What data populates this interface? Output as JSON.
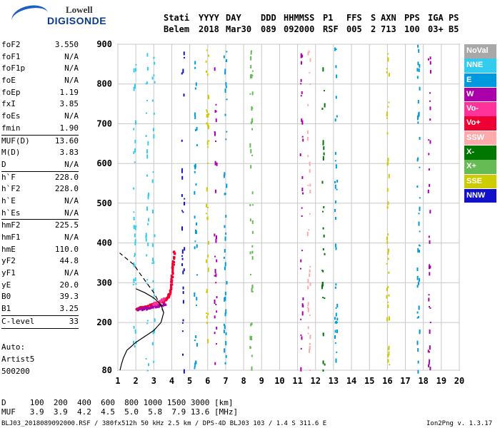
{
  "logo": {
    "line1": "Lowell",
    "line2": "DIGISONDE"
  },
  "header": {
    "labels": [
      "Stati",
      "YYYY",
      "DAY",
      "DDD",
      "HHMMSS",
      "P1",
      "FFS",
      "S",
      "AXN",
      "PPS",
      "IGA",
      "PS"
    ],
    "values": [
      "Belem",
      "2018",
      "Mar30",
      "089",
      "092000",
      "RSF",
      "005",
      "2",
      "713",
      "100",
      "03+",
      "B5"
    ]
  },
  "params": [
    {
      "label": "foF2",
      "value": "3.550"
    },
    {
      "label": "foF1",
      "value": "N/A"
    },
    {
      "label": "foF1p",
      "value": "N/A"
    },
    {
      "label": "foE",
      "value": "N/A"
    },
    {
      "label": "foEp",
      "value": "1.19"
    },
    {
      "label": "fxI",
      "value": "3.85"
    },
    {
      "label": "foEs",
      "value": "N/A"
    },
    {
      "label": "fmin",
      "value": "1.90"
    },
    {
      "label": "MUF(D)",
      "value": "13.60",
      "sep": true
    },
    {
      "label": "M(D)",
      "value": "3.83"
    },
    {
      "label": "D",
      "value": "N/A"
    },
    {
      "label": "h`F",
      "value": "228.0",
      "sep": true
    },
    {
      "label": "h`F2",
      "value": "228.0"
    },
    {
      "label": "h`E",
      "value": "N/A"
    },
    {
      "label": "h`Es",
      "value": "N/A"
    },
    {
      "label": "hmF2",
      "value": "225.5",
      "sep": true
    },
    {
      "label": "hmF1",
      "value": "N/A"
    },
    {
      "label": "hmE",
      "value": "110.0"
    },
    {
      "label": "yF2",
      "value": "44.8"
    },
    {
      "label": "yF1",
      "value": "N/A"
    },
    {
      "label": "yE",
      "value": "20.0"
    },
    {
      "label": "B0",
      "value": "39.3"
    },
    {
      "label": "B1",
      "value": "3.25"
    },
    {
      "label": "C-level",
      "value": "33",
      "sep": true
    }
  ],
  "auto": {
    "line1": "Auto:",
    "line2": "Artist5",
    "line3": "500200"
  },
  "legend": [
    {
      "label": "NoVal",
      "color": "#a8a8a8"
    },
    {
      "label": "NNE",
      "color": "#33ccee"
    },
    {
      "label": "E",
      "color": "#0099dd"
    },
    {
      "label": "W",
      "color": "#aa00aa"
    },
    {
      "label": "Vo-",
      "color": "#ff3399"
    },
    {
      "label": "Vo+",
      "color": "#ee0033"
    },
    {
      "label": "SSW",
      "color": "#ffaaaa"
    },
    {
      "label": "X-",
      "color": "#007700"
    },
    {
      "label": "X+",
      "color": "#66bb55"
    },
    {
      "label": "SSE",
      "color": "#cccc00"
    },
    {
      "label": "NNW",
      "color": "#1111cc"
    }
  ],
  "bottom": {
    "d_row": "D     100  200  400  600  800 1000 1500 3000 [km]",
    "muf_row": "MUF   3.9  3.9  4.2  4.5  5.0  5.8  7.9 13.6 [MHz]"
  },
  "footer": {
    "left": "BLJ03_2018089092000.RSF / 380fx512h 50 kHz 2.5 km / DPS-4D BLJ03 103 / 1.4 S 311.6 E",
    "right": "Ion2Png v. 1.3.17"
  },
  "chart_data": {
    "type": "scatter",
    "x_range": [
      1,
      20
    ],
    "y_range": [
      80,
      900
    ],
    "x_ticks": [
      1,
      2,
      3,
      4,
      5,
      6,
      7,
      8,
      9,
      10,
      11,
      12,
      13,
      14,
      15,
      16,
      17,
      18,
      19,
      20
    ],
    "y_ticks": [
      80,
      200,
      300,
      400,
      500,
      600,
      700,
      800,
      900
    ],
    "grid": true,
    "legend_position": "right",
    "echo_traces": [
      {
        "color": "#ee0033",
        "freq": [
          2.05,
          2.3,
          2.6,
          2.9,
          3.2,
          3.5,
          3.7,
          3.85,
          3.95,
          4.0,
          4.05,
          4.1,
          4.15
        ],
        "height": [
          233,
          236,
          240,
          244,
          248,
          252,
          258,
          268,
          285,
          305,
          330,
          355,
          380
        ]
      },
      {
        "color": "#aa00aa",
        "freq": [
          2.1,
          2.5,
          2.9,
          3.3,
          3.7
        ],
        "height": [
          232,
          235,
          238,
          242,
          247
        ]
      },
      {
        "color": "#ff3399",
        "freq": [
          3.0,
          3.2,
          3.4,
          3.6
        ],
        "height": [
          246,
          250,
          254,
          260
        ]
      }
    ],
    "profile_solid": {
      "density": [
        1.12,
        1.2,
        1.3,
        1.5,
        2.0,
        2.5,
        3.0,
        3.4,
        3.55,
        3.4,
        3.0,
        2.5,
        2.0
      ],
      "height": [
        80,
        95,
        110,
        130,
        150,
        165,
        180,
        200,
        225,
        245,
        262,
        275,
        285
      ]
    },
    "profile_dashed": {
      "density": [
        3.55,
        3.3,
        3.0,
        2.6,
        2.2,
        1.9,
        1.5,
        1.1
      ],
      "height": [
        225,
        250,
        275,
        300,
        325,
        345,
        360,
        375
      ]
    },
    "vertical_stripes": [
      {
        "freq": 1.9,
        "color": "#33ccee"
      },
      {
        "freq": 2.6,
        "color": "#33ccee"
      },
      {
        "freq": 2.95,
        "color": "#33ccee"
      },
      {
        "freq": 4.6,
        "color": "#1111cc"
      },
      {
        "freq": 5.3,
        "color": "#0099dd"
      },
      {
        "freq": 5.95,
        "color": "#cccc00"
      },
      {
        "freq": 6.4,
        "color": "#aa00aa"
      },
      {
        "freq": 6.95,
        "color": "#0099dd"
      },
      {
        "freq": 8.4,
        "color": "#66bb55"
      },
      {
        "freq": 11.2,
        "color": "#aa00aa"
      },
      {
        "freq": 11.6,
        "color": "#ffaaaa"
      },
      {
        "freq": 12.4,
        "color": "#007700"
      },
      {
        "freq": 13.1,
        "color": "#0099dd"
      },
      {
        "freq": 16.0,
        "color": "#cccc00"
      },
      {
        "freq": 17.7,
        "color": "#0099dd"
      },
      {
        "freq": 18.3,
        "color": "#aa00aa"
      }
    ]
  }
}
